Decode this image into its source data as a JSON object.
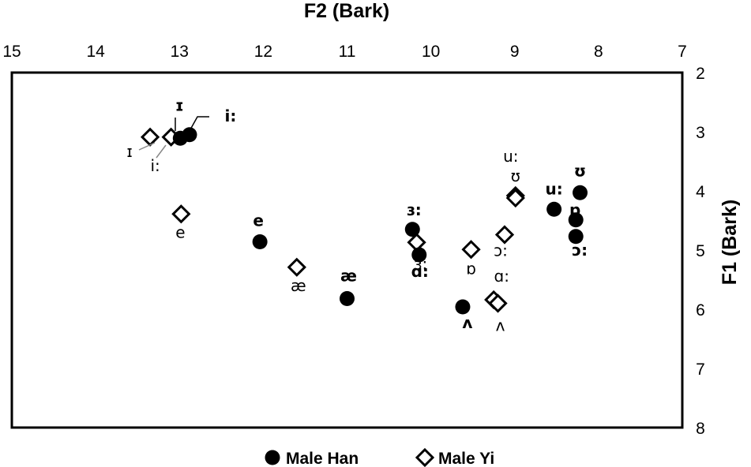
{
  "chart_data": {
    "type": "scatter",
    "title": "",
    "xlabel": "F2 (Bark)",
    "ylabel": "F1 (Bark)",
    "xlim": [
      15,
      7
    ],
    "ylim": [
      2,
      8
    ],
    "x_reversed": true,
    "y_reversed": true,
    "x_axis_position": "top",
    "y_axis_position": "right",
    "x_ticks": [
      "15",
      "14",
      "13",
      "12",
      "11",
      "10",
      "9",
      "8",
      "7"
    ],
    "y_ticks": [
      "2",
      "3",
      "4",
      "5",
      "6",
      "7",
      "8"
    ],
    "grid": false,
    "legend_position": "bottom",
    "series": [
      {
        "name": "Male Han",
        "marker": "filled-circle",
        "color": "#000000",
        "points": [
          {
            "label": "ɪ",
            "x": 12.99,
            "y": 3.11
          },
          {
            "label": "i:",
            "x": 12.88,
            "y": 3.05
          },
          {
            "label": "e",
            "x": 12.04,
            "y": 4.86
          },
          {
            "label": "æ",
            "x": 11.0,
            "y": 5.82
          },
          {
            "label": "ɜ:",
            "x": 10.22,
            "y": 4.65
          },
          {
            "label": "ɑ:",
            "x": 10.14,
            "y": 5.08
          },
          {
            "label": "ʌ",
            "x": 9.62,
            "y": 5.96
          },
          {
            "label": "u:",
            "x": 8.53,
            "y": 4.31
          },
          {
            "label": "ʊ",
            "x": 8.22,
            "y": 4.03
          },
          {
            "label": "ɒ",
            "x": 8.27,
            "y": 4.49
          },
          {
            "label": "ɔ:",
            "x": 8.27,
            "y": 4.77
          }
        ]
      },
      {
        "name": "Male Yi",
        "marker": "open-diamond",
        "color": "#000000",
        "points": [
          {
            "label": "ɪ",
            "x": 13.35,
            "y": 3.09
          },
          {
            "label": "i:",
            "x": 13.1,
            "y": 3.09
          },
          {
            "label": "e",
            "x": 12.98,
            "y": 4.39
          },
          {
            "label": "æ",
            "x": 11.6,
            "y": 5.29
          },
          {
            "label": "ɜ:",
            "x": 10.17,
            "y": 4.87
          },
          {
            "label": "ɒ",
            "x": 9.52,
            "y": 4.99
          },
          {
            "label": "ɑ:",
            "x": 9.25,
            "y": 5.84
          },
          {
            "label": "ʌ",
            "x": 9.2,
            "y": 5.9
          },
          {
            "label": "ɔ:",
            "x": 9.12,
            "y": 4.74
          },
          {
            "label": "u:",
            "x": 8.99,
            "y": 4.08
          },
          {
            "label": "ʊ",
            "x": 8.99,
            "y": 4.12
          }
        ]
      }
    ]
  }
}
